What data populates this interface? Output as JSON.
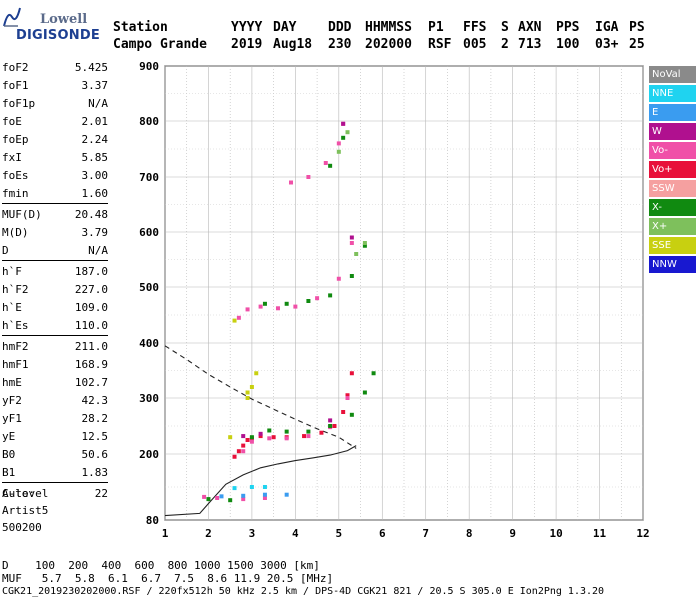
{
  "logo": {
    "line1": "Lowell",
    "line2": "DIGISONDE"
  },
  "header": {
    "row1": [
      "Station",
      "YYYY",
      "DAY",
      "DDD",
      "HHMMSS",
      "P1",
      "FFS",
      "S",
      "AXN",
      "PPS",
      "IGA",
      "PS"
    ],
    "row2": [
      "Campo Grande",
      "2019",
      "Aug18",
      "230",
      "202000",
      "RSF",
      "005",
      "2",
      "713",
      "100",
      "03+",
      "25"
    ]
  },
  "params": {
    "g1": [
      {
        "label": "foF2",
        "value": "5.425"
      },
      {
        "label": "foF1",
        "value": "3.37"
      },
      {
        "label": "foF1p",
        "value": "N/A"
      },
      {
        "label": "foE",
        "value": "2.01"
      },
      {
        "label": "foEp",
        "value": "2.24"
      },
      {
        "label": "fxI",
        "value": "5.85"
      },
      {
        "label": "foEs",
        "value": "3.00"
      },
      {
        "label": "fmin",
        "value": "1.60"
      }
    ],
    "g2": [
      {
        "label": "MUF(D)",
        "value": "20.48"
      },
      {
        "label": "M(D)",
        "value": "3.79"
      },
      {
        "label": "D",
        "value": "N/A"
      }
    ],
    "g3": [
      {
        "label": "h`F",
        "value": "187.0"
      },
      {
        "label": "h`F2",
        "value": "227.0"
      },
      {
        "label": "h`E",
        "value": "109.0"
      },
      {
        "label": "h`Es",
        "value": "110.0"
      }
    ],
    "g4": [
      {
        "label": "hmF2",
        "value": "211.0"
      },
      {
        "label": "hmF1",
        "value": "168.9"
      },
      {
        "label": "hmE",
        "value": "102.7"
      },
      {
        "label": "yF2",
        "value": "42.3"
      },
      {
        "label": "yF1",
        "value": "28.2"
      },
      {
        "label": "yE",
        "value": "12.5"
      },
      {
        "label": "B0",
        "value": "50.6"
      },
      {
        "label": "B1",
        "value": "1.83"
      }
    ],
    "g5": [
      {
        "label": "C-level",
        "value": "22"
      }
    ]
  },
  "auto": {
    "line1": "Auto:",
    "line2": "Artist5",
    "line3": "500200"
  },
  "legend": [
    {
      "label": "NoVal",
      "color": "#8a8a8a"
    },
    {
      "label": "NNE",
      "color": "#1fd3f0"
    },
    {
      "label": "E",
      "color": "#3a9cf0"
    },
    {
      "label": "W",
      "color": "#b0108f"
    },
    {
      "label": "Vo-",
      "color": "#f050a8"
    },
    {
      "label": "Vo+",
      "color": "#e8103a"
    },
    {
      "label": "SSW",
      "color": "#f5a0a0"
    },
    {
      "label": "X-",
      "color": "#108a10"
    },
    {
      "label": "X+",
      "color": "#7ec05c"
    },
    {
      "label": "SSE",
      "color": "#c8d010"
    },
    {
      "label": "NNW",
      "color": "#1818d0"
    }
  ],
  "scales": {
    "d_row": "D    100  200  400  600  800 1000 1500 3000 [km]",
    "muf_row": "MUF   5.7  5.8  6.1  6.7  7.5  8.6 11.9 20.5 [MHz]"
  },
  "footer": "CGK21_2019230202000.RSF / 220fx512h 50 kHz 2.5 km / DPS-4D CGK21 821 / 20.5 S 305.0 E Ion2Png 1.3.20",
  "chart_data": {
    "type": "scatter",
    "xlim": [
      1,
      12
    ],
    "ylim": [
      80,
      900
    ],
    "x_ticks": [
      1,
      2,
      3,
      4,
      5,
      6,
      7,
      8,
      9,
      10,
      11,
      12
    ],
    "y_ticks": [
      80,
      200,
      300,
      400,
      500,
      600,
      700,
      800,
      900
    ],
    "grid": true,
    "series": [
      {
        "name": "Vo+",
        "color": "#e8103a",
        "points": [
          [
            2.6,
            195
          ],
          [
            2.7,
            205
          ],
          [
            2.8,
            215
          ],
          [
            2.9,
            225
          ],
          [
            3.0,
            228
          ],
          [
            3.2,
            232
          ],
          [
            3.5,
            230
          ],
          [
            3.8,
            230
          ],
          [
            4.2,
            232
          ],
          [
            4.6,
            238
          ],
          [
            4.9,
            250
          ],
          [
            5.1,
            275
          ],
          [
            5.2,
            305
          ],
          [
            5.3,
            345
          ]
        ]
      },
      {
        "name": "Vo-",
        "color": "#f050a8",
        "points": [
          [
            2.8,
            205
          ],
          [
            3.0,
            222
          ],
          [
            3.4,
            228
          ],
          [
            3.8,
            228
          ],
          [
            4.3,
            232
          ],
          [
            4.8,
            248
          ],
          [
            5.2,
            300
          ],
          [
            2.7,
            445
          ],
          [
            2.9,
            460
          ],
          [
            3.2,
            465
          ],
          [
            3.6,
            462
          ],
          [
            4.0,
            465
          ],
          [
            4.5,
            480
          ],
          [
            5.0,
            515
          ],
          [
            5.3,
            580
          ],
          [
            3.9,
            690
          ],
          [
            4.3,
            700
          ],
          [
            4.7,
            725
          ],
          [
            5.0,
            760
          ],
          [
            5.1,
            795
          ],
          [
            1.9,
            122
          ],
          [
            2.2,
            120
          ],
          [
            2.8,
            118
          ],
          [
            3.3,
            120
          ]
        ]
      },
      {
        "name": "X-",
        "color": "#108a10",
        "points": [
          [
            3.0,
            230
          ],
          [
            3.4,
            242
          ],
          [
            3.8,
            240
          ],
          [
            4.3,
            240
          ],
          [
            4.8,
            250
          ],
          [
            5.3,
            270
          ],
          [
            5.6,
            310
          ],
          [
            5.8,
            345
          ],
          [
            3.3,
            470
          ],
          [
            3.8,
            470
          ],
          [
            4.3,
            475
          ],
          [
            4.8,
            485
          ],
          [
            5.3,
            520
          ],
          [
            5.6,
            575
          ],
          [
            4.8,
            720
          ],
          [
            5.1,
            770
          ],
          [
            2.0,
            118
          ],
          [
            2.5,
            116
          ]
        ]
      },
      {
        "name": "X+",
        "color": "#7ec05c",
        "points": [
          [
            5.0,
            745
          ],
          [
            5.2,
            780
          ],
          [
            5.4,
            560
          ],
          [
            5.6,
            580
          ]
        ]
      },
      {
        "name": "E",
        "color": "#3a9cf0",
        "points": [
          [
            2.3,
            123
          ],
          [
            2.8,
            124
          ],
          [
            3.3,
            126
          ],
          [
            3.8,
            126
          ]
        ]
      },
      {
        "name": "NNE",
        "color": "#1fd3f0",
        "points": [
          [
            2.6,
            138
          ],
          [
            3.0,
            140
          ],
          [
            3.3,
            140
          ]
        ]
      },
      {
        "name": "SSE",
        "color": "#c8d010",
        "points": [
          [
            2.9,
            300
          ],
          [
            3.0,
            320
          ],
          [
            3.1,
            345
          ],
          [
            2.5,
            230
          ],
          [
            2.9,
            310
          ],
          [
            2.6,
            440
          ]
        ]
      },
      {
        "name": "W",
        "color": "#b0108f",
        "points": [
          [
            5.1,
            795
          ],
          [
            5.3,
            590
          ],
          [
            2.8,
            232
          ],
          [
            3.2,
            236
          ],
          [
            4.8,
            260
          ]
        ]
      }
    ],
    "lines": [
      {
        "name": "profile",
        "style": "solid",
        "points": [
          [
            1.0,
            88
          ],
          [
            1.8,
            92
          ],
          [
            2.0,
            110
          ],
          [
            2.4,
            145
          ],
          [
            2.8,
            162
          ],
          [
            3.2,
            175
          ],
          [
            3.6,
            182
          ],
          [
            4.0,
            188
          ],
          [
            4.4,
            193
          ],
          [
            4.8,
            198
          ],
          [
            5.2,
            206
          ],
          [
            5.4,
            215
          ]
        ]
      },
      {
        "name": "model",
        "style": "dashed",
        "points": [
          [
            1.0,
            395
          ],
          [
            1.5,
            370
          ],
          [
            2.0,
            343
          ],
          [
            2.5,
            320
          ],
          [
            3.0,
            298
          ],
          [
            3.5,
            280
          ],
          [
            4.0,
            262
          ],
          [
            4.5,
            245
          ],
          [
            5.0,
            230
          ],
          [
            5.4,
            210
          ]
        ]
      }
    ]
  }
}
